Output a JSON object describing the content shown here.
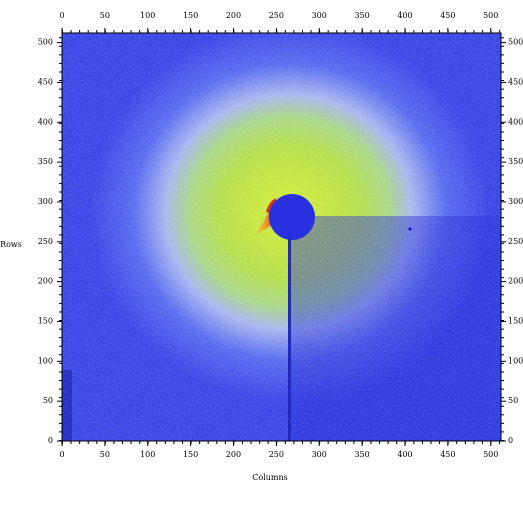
{
  "chart_data": {
    "type": "image",
    "xlabel": "Columns",
    "ylabel": "Rows",
    "xlim": [
      0,
      512
    ],
    "ylim": [
      0,
      512
    ],
    "xticks": [
      0,
      50,
      100,
      150,
      200,
      250,
      300,
      350,
      400,
      450,
      500
    ],
    "yticks": [
      0,
      50,
      100,
      150,
      200,
      250,
      300,
      350,
      400,
      450,
      500
    ]
  }
}
